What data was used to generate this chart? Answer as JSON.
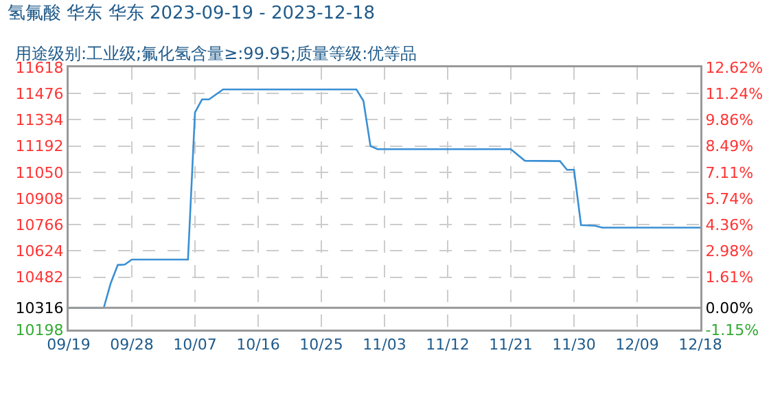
{
  "chart_data": {
    "type": "line",
    "title": "氢氟酸 华东 华东 2023-09-19 - 2023-12-18",
    "subtitle": "用途级别:工业级;氟化氢含量≥:99.95;质量等级:优等品",
    "x": [
      "2023-09-19",
      "2023-09-24",
      "2023-09-25",
      "2023-09-26",
      "2023-09-27",
      "2023-09-28",
      "2023-10-06",
      "2023-10-07",
      "2023-10-08",
      "2023-10-09",
      "2023-10-11",
      "2023-10-30",
      "2023-10-31",
      "2023-11-01",
      "2023-11-02",
      "2023-11-21",
      "2023-11-23",
      "2023-11-28",
      "2023-11-29",
      "2023-11-30",
      "2023-12-01",
      "2023-12-03",
      "2023-12-04",
      "2023-12-18"
    ],
    "series": [
      {
        "color": "#3a8fd4",
        "values": [
          10316,
          10316,
          10450,
          10548,
          10550,
          10577,
          10577,
          11374,
          11444,
          11444,
          11498,
          11498,
          11436,
          11192,
          11175,
          11175,
          11112,
          11110,
          11063,
          11063,
          10764,
          10760,
          10750,
          10750
        ]
      }
    ],
    "xlim": [
      "2023-09-19",
      "2023-12-18"
    ],
    "xticks": [
      {
        "value": "2023-09-19",
        "label": "09/19"
      },
      {
        "value": "2023-09-28",
        "label": "09/28"
      },
      {
        "value": "2023-10-07",
        "label": "10/07"
      },
      {
        "value": "2023-10-16",
        "label": "10/16"
      },
      {
        "value": "2023-10-25",
        "label": "10/25"
      },
      {
        "value": "2023-11-03",
        "label": "11/03"
      },
      {
        "value": "2023-11-12",
        "label": "11/12"
      },
      {
        "value": "2023-11-21",
        "label": "11/21"
      },
      {
        "value": "2023-11-30",
        "label": "11/30"
      },
      {
        "value": "2023-12-09",
        "label": "12/09"
      },
      {
        "value": "2023-12-18",
        "label": "12/18"
      }
    ],
    "ylim": [
      10198,
      11618
    ],
    "yticks": [
      10198,
      10316,
      10482,
      10624,
      10766,
      10908,
      11050,
      11192,
      11334,
      11476,
      11618
    ],
    "y2lim": [
      -1.15,
      12.62
    ],
    "y2ticks": [
      {
        "value": -1.15,
        "label": "-1.15%"
      },
      {
        "value": 0,
        "label": "0.00%"
      },
      {
        "value": 1.61,
        "label": "1.61%"
      },
      {
        "value": 2.98,
        "label": "2.98%"
      },
      {
        "value": 4.36,
        "label": "4.36%"
      },
      {
        "value": 5.74,
        "label": "5.74%"
      },
      {
        "value": 7.11,
        "label": "7.11%"
      },
      {
        "value": 8.49,
        "label": "8.49%"
      },
      {
        "value": 9.86,
        "label": "9.86%"
      },
      {
        "value": 11.24,
        "label": "11.24%"
      },
      {
        "value": 12.62,
        "label": "12.62%"
      }
    ],
    "ref_lines": [
      {
        "axis": "y",
        "value": 10316,
        "color": "#999999"
      }
    ],
    "grid": true,
    "marker": "none",
    "line_style": "solid"
  }
}
